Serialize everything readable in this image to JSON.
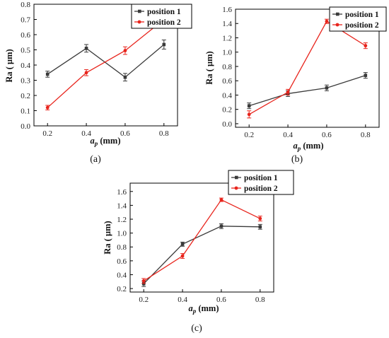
{
  "chart_data": [
    {
      "type": "line",
      "caption": "(a)",
      "x": [
        0.2,
        0.4,
        0.6,
        0.8
      ],
      "xticks": [
        "0.2",
        "0.4",
        "0.6",
        "0.8"
      ],
      "xlim": [
        0.13,
        0.87
      ],
      "yticks": [
        "0.0",
        "0.1",
        "0.2",
        "0.3",
        "0.4",
        "0.5",
        "0.6",
        "0.7",
        "0.8"
      ],
      "ylim": [
        0.0,
        0.8
      ],
      "xlabel": {
        "main": "a",
        "sub": "p",
        "rest": " (mm)"
      },
      "ylabel": "Ra ( μm)",
      "legend_position": "top-right",
      "series": [
        {
          "name": "position 1",
          "color": "#3a3a3a",
          "values": [
            0.34,
            0.51,
            0.32,
            0.535
          ],
          "errors": [
            0.02,
            0.025,
            0.025,
            0.03
          ]
        },
        {
          "name": "position 2",
          "color": "#e8241c",
          "values": [
            0.12,
            0.35,
            0.495,
            0.7
          ],
          "errors": [
            0.015,
            0.02,
            0.025,
            0.025
          ]
        }
      ]
    },
    {
      "type": "line",
      "caption": "(b)",
      "x": [
        0.2,
        0.4,
        0.6,
        0.8
      ],
      "xticks": [
        "0.2",
        "0.4",
        "0.6",
        "0.8"
      ],
      "xlim": [
        0.13,
        0.87
      ],
      "yticks": [
        "0.0",
        "0.2",
        "0.4",
        "0.6",
        "0.8",
        "1.0",
        "1.2",
        "1.4",
        "1.6"
      ],
      "ylim": [
        -0.05,
        1.6
      ],
      "xlabel": {
        "main": "a",
        "sub": "p",
        "rest": " (mm)"
      },
      "ylabel": "Ra ( μm)",
      "legend_position": "top-right",
      "series": [
        {
          "name": "position 1",
          "color": "#3a3a3a",
          "values": [
            0.25,
            0.42,
            0.5,
            0.675
          ],
          "errors": [
            0.04,
            0.04,
            0.04,
            0.04
          ]
        },
        {
          "name": "position 2",
          "color": "#e8241c",
          "values": [
            0.13,
            0.44,
            1.43,
            1.09
          ],
          "errors": [
            0.05,
            0.04,
            0.03,
            0.04
          ]
        }
      ]
    },
    {
      "type": "line",
      "caption": "(c)",
      "x": [
        0.2,
        0.4,
        0.6,
        0.8
      ],
      "xticks": [
        "0.2",
        "0.4",
        "0.6",
        "0.8"
      ],
      "xlim": [
        0.13,
        0.87
      ],
      "yticks": [
        "0.2",
        "0.4",
        "0.6",
        "0.8",
        "1.0",
        "1.2",
        "1.4",
        "1.6"
      ],
      "ylim": [
        0.15,
        1.72
      ],
      "xlabel": {
        "main": "a",
        "sub": "p",
        "rest": " (mm)"
      },
      "ylabel": "Ra ( μm)",
      "legend_position": "top-right",
      "series": [
        {
          "name": "position 1",
          "color": "#3a3a3a",
          "values": [
            0.27,
            0.84,
            1.1,
            1.09
          ],
          "errors": [
            0.04,
            0.03,
            0.035,
            0.035
          ]
        },
        {
          "name": "position 2",
          "color": "#e8241c",
          "values": [
            0.31,
            0.67,
            1.48,
            1.21
          ],
          "errors": [
            0.035,
            0.035,
            0.025,
            0.035
          ]
        }
      ]
    }
  ]
}
